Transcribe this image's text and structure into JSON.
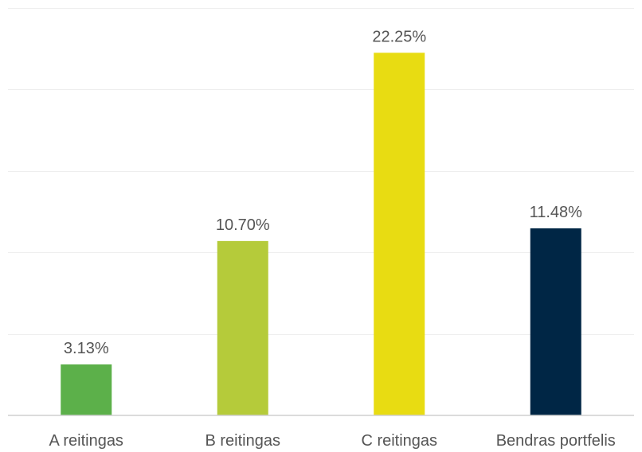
{
  "chart_data": {
    "type": "bar",
    "categories": [
      "A reitingas",
      "B reitingas",
      "C reitingas",
      "Bendras portfelis"
    ],
    "values": [
      3.13,
      10.7,
      22.25,
      11.48
    ],
    "value_labels": [
      "3.13%",
      "10.70%",
      "22.25%",
      "11.48%"
    ],
    "colors": [
      "#5cb04a",
      "#b5cb3a",
      "#e8dc12",
      "#002645"
    ],
    "title": "",
    "xlabel": "",
    "ylabel": "",
    "ylim": [
      0,
      25
    ],
    "grid": true,
    "legend": "none"
  }
}
